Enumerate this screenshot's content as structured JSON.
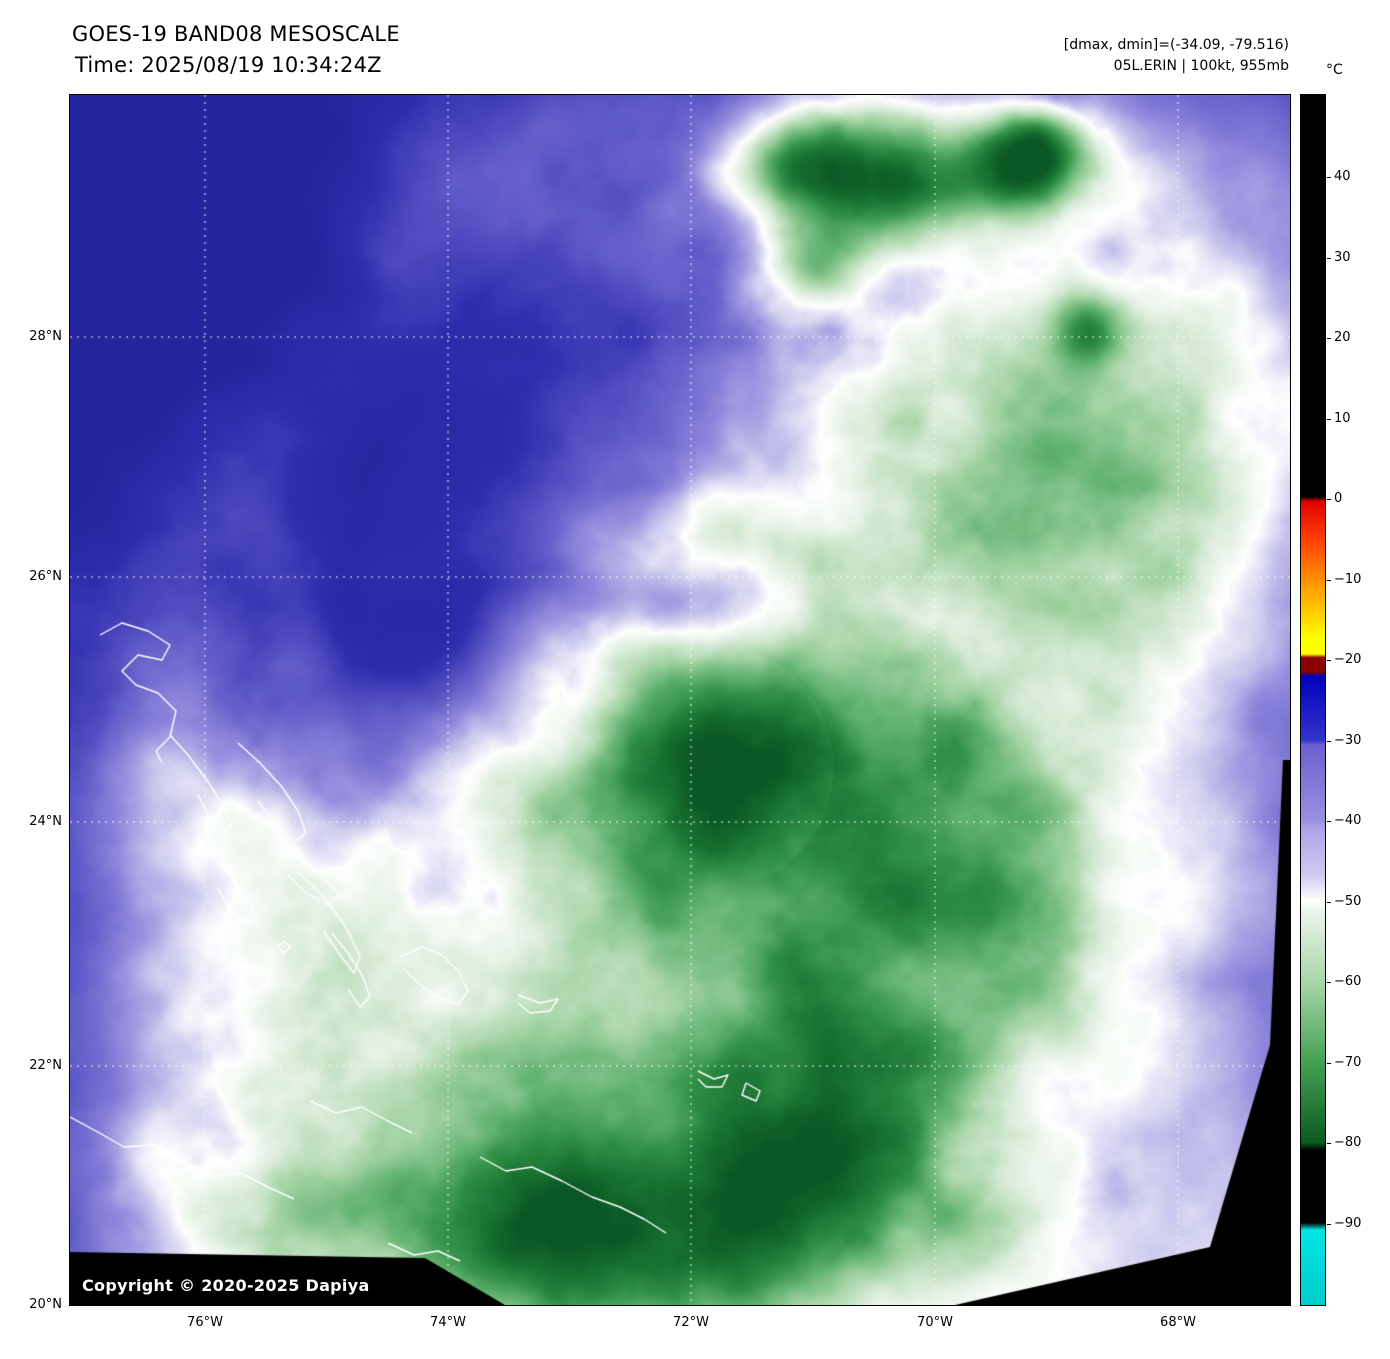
{
  "header": {
    "title": "GOES-19 BAND08 MESOSCALE",
    "time_label": "Time: 2025/08/19 10:34:24Z",
    "dminmax": "[dmax, dmin]=(-34.09, -79.516)",
    "storm": "05L.ERIN | 100kt, 955mb"
  },
  "colorbar": {
    "unit": "°C",
    "ticks": [
      "40",
      "30",
      "20",
      "10",
      "0",
      "−10",
      "−20",
      "−30",
      "−40",
      "−50",
      "−60",
      "−70",
      "−80",
      "−90"
    ],
    "stops": [
      {
        "p": 0.0,
        "c": "#000000"
      },
      {
        "p": 0.332,
        "c": "#000000"
      },
      {
        "p": 0.336,
        "c": "#e00000"
      },
      {
        "p": 0.37,
        "c": "#ff4400"
      },
      {
        "p": 0.41,
        "c": "#ffa500"
      },
      {
        "p": 0.45,
        "c": "#ffff00"
      },
      {
        "p": 0.462,
        "c": "#ffff00"
      },
      {
        "p": 0.465,
        "c": "#8b0000"
      },
      {
        "p": 0.477,
        "c": "#8b0000"
      },
      {
        "p": 0.48,
        "c": "#0000bb"
      },
      {
        "p": 0.533,
        "c": "#3333cc"
      },
      {
        "p": 0.537,
        "c": "#6a5fd0"
      },
      {
        "p": 0.6,
        "c": "#9a90e0"
      },
      {
        "p": 0.605,
        "c": "#aaa2e6"
      },
      {
        "p": 0.645,
        "c": "#cfcbf0"
      },
      {
        "p": 0.666,
        "c": "#ffffff"
      },
      {
        "p": 0.672,
        "c": "#eef6ee"
      },
      {
        "p": 0.733,
        "c": "#a8d6a8"
      },
      {
        "p": 0.8,
        "c": "#44a052"
      },
      {
        "p": 0.866,
        "c": "#0b5a20"
      },
      {
        "p": 0.872,
        "c": "#000000"
      },
      {
        "p": 0.932,
        "c": "#000000"
      },
      {
        "p": 0.938,
        "c": "#00e5e5"
      },
      {
        "p": 1.0,
        "c": "#00cccc"
      }
    ]
  },
  "map": {
    "lat_labels": [
      "28°N",
      "26°N",
      "24°N",
      "22°N",
      "20°N"
    ],
    "lon_labels": [
      "76°W",
      "74°W",
      "72°W",
      "70°W",
      "68°W"
    ],
    "copyright": "Copyright © 2020-2025 Dapiya"
  },
  "palette": [
    {
      "t": -34,
      "c": "#24249c"
    },
    {
      "t": -37,
      "c": "#2e2eae"
    },
    {
      "t": -40,
      "c": "#5f5ac8"
    },
    {
      "t": -44,
      "c": "#968ede"
    },
    {
      "t": -48,
      "c": "#d4d2f0"
    },
    {
      "t": -51,
      "c": "#ffffff"
    },
    {
      "t": -55,
      "c": "#ddeedd"
    },
    {
      "t": -60,
      "c": "#a4d4a4"
    },
    {
      "t": -65,
      "c": "#62b370"
    },
    {
      "t": -70,
      "c": "#2f8f44"
    },
    {
      "t": -75,
      "c": "#177030"
    },
    {
      "t": -80,
      "c": "#0a5523"
    }
  ]
}
